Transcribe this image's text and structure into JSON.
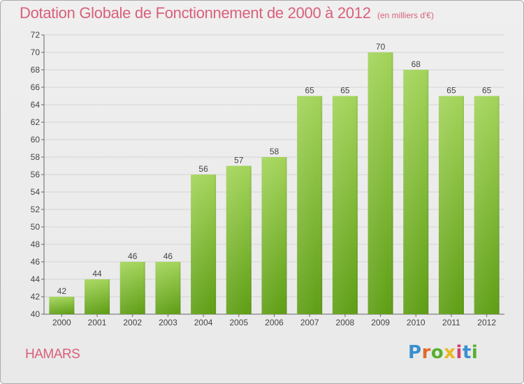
{
  "header": {
    "title": "Dotation Globale de Fonctionnement de 2000 à 2012",
    "subtitle": "(en milliers d'€)"
  },
  "footer": {
    "commune": "HAMARS",
    "logo": [
      "P",
      "r",
      "o",
      "x",
      "i",
      "t",
      "i"
    ]
  },
  "colors": {
    "bar_light": "#a3d45a",
    "bar_dark": "#5e9e14",
    "title": "#d9607a",
    "grid": "#d4d4d4"
  },
  "chart_data": {
    "type": "bar",
    "title": "Dotation Globale de Fonctionnement de 2000 à 2012",
    "subtitle": "(en milliers d'€)",
    "xlabel": "",
    "ylabel": "",
    "categories": [
      "2000",
      "2001",
      "2002",
      "2003",
      "2004",
      "2005",
      "2006",
      "2007",
      "2008",
      "2009",
      "2010",
      "2011",
      "2012"
    ],
    "values": [
      42,
      44,
      46,
      46,
      56,
      57,
      58,
      65,
      65,
      70,
      68,
      65,
      65
    ],
    "ylim": [
      40,
      72
    ],
    "ytick_step": 2,
    "grid": true,
    "data_labels": true
  }
}
